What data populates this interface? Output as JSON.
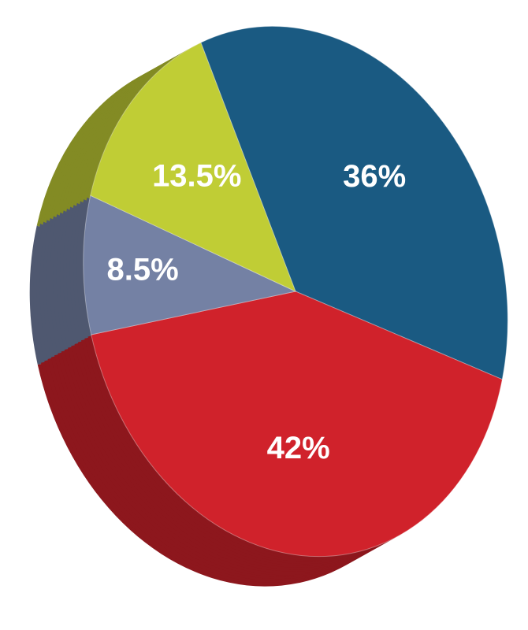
{
  "chart_data": {
    "type": "pie",
    "values": [
      36,
      42,
      8.5,
      13.5
    ],
    "value_labels": [
      "36%",
      "42%",
      "8.5%",
      "13.5%"
    ],
    "colors": [
      "#1a5a82",
      "#d0222b",
      "#7481a4",
      "#c0cd35"
    ]
  }
}
